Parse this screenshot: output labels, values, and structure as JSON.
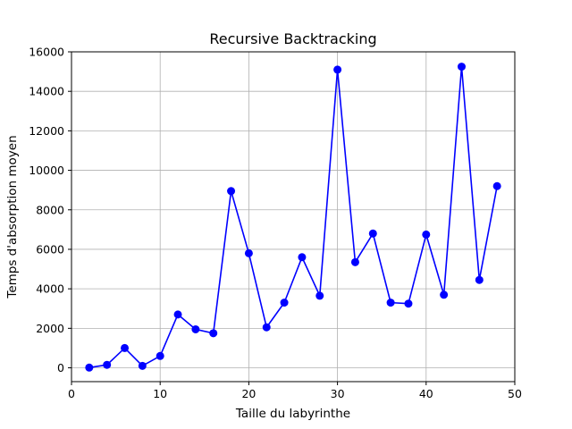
{
  "chart_data": {
    "type": "line",
    "title": "Recursive Backtracking",
    "xlabel": "Taille du labyrinthe",
    "ylabel": "Temps d'absorption moyen",
    "xlim": [
      0,
      50
    ],
    "ylim": [
      -700,
      16000
    ],
    "xticks": [
      0,
      10,
      20,
      30,
      40,
      50
    ],
    "yticks": [
      0,
      2000,
      4000,
      6000,
      8000,
      10000,
      12000,
      14000,
      16000
    ],
    "grid": true,
    "series": [
      {
        "color": "#0000ff",
        "marker": "circle",
        "x": [
          2,
          4,
          6,
          8,
          10,
          12,
          14,
          16,
          18,
          20,
          22,
          24,
          26,
          28,
          30,
          32,
          34,
          36,
          38,
          40,
          42,
          44,
          46,
          48
        ],
        "y": [
          10,
          150,
          1000,
          100,
          600,
          2700,
          1950,
          1750,
          8950,
          5800,
          2050,
          3300,
          5600,
          3650,
          15100,
          5350,
          6800,
          3300,
          3250,
          6750,
          3700,
          15250,
          4450,
          9200
        ]
      }
    ]
  }
}
